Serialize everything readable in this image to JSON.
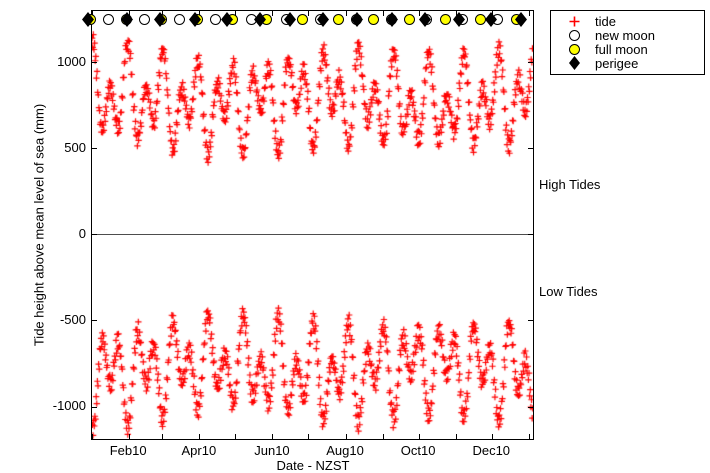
{
  "figure": {
    "background": "#ffffff"
  },
  "chart_data": {
    "type": "scatter",
    "title": "",
    "xlabel": "Date - NZST",
    "ylabel": "Tide height above mean level of sea (mm)",
    "grid": false,
    "legend_position": "outside-top-right",
    "x_axis": {
      "unit": "days since 1 Jan 2010",
      "range": [
        0,
        368
      ],
      "month_ticks": [
        {
          "day": 0,
          "label": ""
        },
        {
          "day": 31,
          "label": "Feb10"
        },
        {
          "day": 59,
          "label": ""
        },
        {
          "day": 90,
          "label": "Apr10"
        },
        {
          "day": 120,
          "label": ""
        },
        {
          "day": 151,
          "label": "Jun10"
        },
        {
          "day": 181,
          "label": ""
        },
        {
          "day": 212,
          "label": "Aug10"
        },
        {
          "day": 243,
          "label": ""
        },
        {
          "day": 273,
          "label": "Oct10"
        },
        {
          "day": 304,
          "label": ""
        },
        {
          "day": 334,
          "label": "Dec10"
        },
        {
          "day": 365,
          "label": ""
        }
      ]
    },
    "y_axis": {
      "range": [
        -1186,
        1302
      ],
      "ticks": [
        {
          "value": 1000,
          "label": "1000"
        },
        {
          "value": 500,
          "label": "500"
        },
        {
          "value": 0,
          "label": "0"
        },
        {
          "value": -500,
          "label": "-500"
        },
        {
          "value": -1000,
          "label": "-1000"
        }
      ]
    },
    "zero_line": true,
    "series": [
      {
        "name": "tide",
        "marker": "plus",
        "color": "#ff0000",
        "description": "High tides cluster between ~480 and ~1150 mm, low tides between ~-480 and ~-1150 mm, with fortnightly spring/neap cycles and larger monthly perigean-spring peaks.",
        "generator": {
          "seed": 20100101,
          "interval_days": 0.51753,
          "high_offset_days": 0.1,
          "low_offset_days": 0.3588,
          "mean_mm": 780,
          "spring_amp_mm": 185,
          "spring_period_days": 14.765,
          "spring_peak_day": 0.5,
          "perigee_amp_mm": 130,
          "perigee_period_days": 28.0,
          "perigee_peak_day": 29,
          "inequality_amp_mm": 32,
          "lunar_day_days": 1.0351,
          "seasonal_amp": 0.035,
          "seasonal_peak_day": 10,
          "seasonal_period_days": 182.62,
          "noise_mm": 22,
          "clamp_mm": 1165
        }
      }
    ],
    "events": {
      "symbols_y_mm": 1250,
      "new_moon_days": [
        14,
        44,
        73,
        103,
        133,
        162,
        191,
        221,
        250,
        279,
        309,
        338
      ],
      "full_moon_days": [
        -1,
        29,
        58,
        88,
        117,
        146,
        176,
        206,
        235,
        265,
        295,
        324,
        354
      ],
      "perigee_days": [
        -3,
        29,
        57,
        86,
        113,
        140,
        165,
        193,
        221,
        250,
        278,
        306,
        333,
        358
      ],
      "colors": {
        "new_moon_fill": "#ffffff",
        "full_moon_fill": "#ffff00",
        "perigee_fill": "#000000",
        "outline": "#000000"
      }
    },
    "annotations": [
      {
        "text": "High Tides"
      },
      {
        "text": "Low Tides"
      }
    ],
    "legend": {
      "entries": [
        {
          "label": "tide",
          "marker": "plus",
          "color": "#ff0000"
        },
        {
          "label": "new moon",
          "marker": "circle",
          "fill": "#ffffff"
        },
        {
          "label": "full moon",
          "marker": "circle",
          "fill": "#ffff00"
        },
        {
          "label": "perigee",
          "marker": "diamond",
          "fill": "#000000"
        }
      ]
    }
  }
}
